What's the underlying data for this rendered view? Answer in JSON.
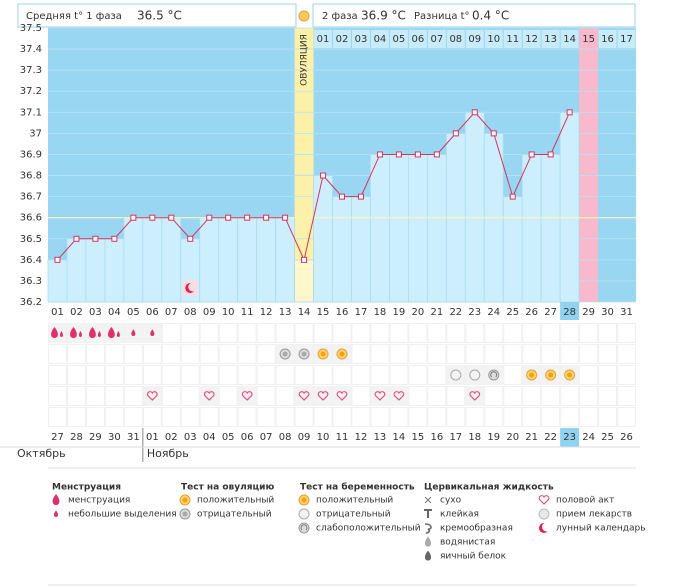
{
  "header": {
    "unit": "°C",
    "phase1_label": "Средняя t° 1 фаза",
    "phase1_value": "36.5 °C",
    "phase2_label": "2 фаза",
    "phase2_value": "36.9 °C",
    "diff_label": "Разница t°",
    "diff_value": "0.4 °C"
  },
  "chart_data": {
    "type": "line",
    "categories": [
      "01",
      "02",
      "03",
      "04",
      "05",
      "06",
      "07",
      "08",
      "09",
      "10",
      "11",
      "12",
      "13",
      "14",
      "15",
      "16",
      "17",
      "18",
      "19",
      "20",
      "21",
      "22",
      "23",
      "24",
      "25",
      "26",
      "27",
      "28",
      "29",
      "30",
      "31"
    ],
    "values": [
      36.4,
      36.5,
      36.5,
      36.5,
      36.6,
      36.6,
      36.6,
      36.5,
      36.6,
      36.6,
      36.6,
      36.6,
      36.6,
      36.4,
      36.8,
      36.7,
      36.7,
      36.9,
      36.9,
      36.9,
      36.9,
      37.0,
      37.1,
      37.0,
      36.7,
      36.9,
      36.9,
      37.1,
      null,
      null,
      null
    ],
    "ylim": [
      36.2,
      37.5
    ],
    "yticks": [
      36.2,
      36.3,
      36.4,
      36.5,
      36.6,
      36.7,
      36.8,
      36.9,
      37,
      37.1,
      37.2,
      37.3,
      37.4,
      37.5
    ],
    "coverline": 36.6,
    "color": "#d6335f",
    "ovulation_label": "ОВУЛЯЦИЯ",
    "post_ovulation_days": [
      "01",
      "02",
      "03",
      "04",
      "05",
      "06",
      "07",
      "08",
      "09",
      "10",
      "11",
      "12",
      "13",
      "14",
      "15",
      "16",
      "17"
    ],
    "dates": [
      "27",
      "28",
      "29",
      "30",
      "31",
      "01",
      "02",
      "03",
      "04",
      "05",
      "06",
      "07",
      "08",
      "09",
      "10",
      "11",
      "12",
      "13",
      "14",
      "15",
      "16",
      "17",
      "18",
      "19",
      "20",
      "21",
      "22",
      "23",
      "24",
      "25",
      "26"
    ],
    "date_colors": [
      "#e0204a",
      "#333333",
      "#333333",
      "#333333",
      "#333333",
      "#333333",
      "#e0204a",
      "#e0204a",
      "#333333",
      "#333333",
      "#333333",
      "#333333",
      "#333333",
      "#e0204a",
      "#e0204a",
      "#333333",
      "#333333",
      "#333333",
      "#333333",
      "#333333",
      "#e0204a",
      "#e0204a",
      "#333333",
      "#333333",
      "#333333",
      "#333333",
      "#333333",
      "#e0204a",
      "#e0204a",
      "#333333",
      "#333333"
    ],
    "months": [
      "Октябрь",
      "Ноябрь"
    ]
  },
  "legend": [
    {
      "title": "Менструация",
      "items": [
        {
          "label": "менструация",
          "icon": "drop",
          "days": [
            1,
            2,
            3,
            4
          ]
        },
        {
          "label": "небольшие выделения",
          "icon": "small-drop",
          "days": [
            5,
            6
          ]
        }
      ]
    },
    {
      "title": "Тест на овуляцию",
      "items": [
        {
          "label": "положительный",
          "icon": "positive",
          "days": [
            15,
            16
          ]
        },
        {
          "label": "отрицательный",
          "icon": "negative",
          "days": [
            13,
            14
          ]
        }
      ]
    },
    {
      "title": "Тест на беременность",
      "items": [
        {
          "label": "положительный",
          "icon": "positive",
          "days": [
            26,
            27,
            28
          ]
        },
        {
          "label": "отрицательный",
          "icon": "blank",
          "days": [
            22,
            23
          ]
        },
        {
          "label": "слабоположительный",
          "icon": "weak",
          "days": [
            24
          ]
        }
      ]
    },
    {
      "title": "Цервикальная жидкость",
      "items": [
        {
          "label": "сухо",
          "icon": "x",
          "days": []
        },
        {
          "label": "клейкая",
          "icon": "t",
          "days": []
        },
        {
          "label": "кремообразная",
          "icon": "swirl",
          "days": []
        },
        {
          "label": "водянистая",
          "icon": "gray-drop",
          "days": []
        },
        {
          "label": "яичный белок",
          "icon": "dark-drop",
          "days": []
        }
      ]
    },
    {
      "items": [
        {
          "label": "половой акт",
          "icon": "heart",
          "days": [
            6,
            9,
            11,
            14,
            15,
            16,
            18,
            19,
            23
          ]
        },
        {
          "label": "прием лекарств",
          "icon": "pill",
          "days": []
        },
        {
          "label": "лунный календарь",
          "icon": "moon",
          "days": [
            8
          ]
        }
      ]
    }
  ]
}
